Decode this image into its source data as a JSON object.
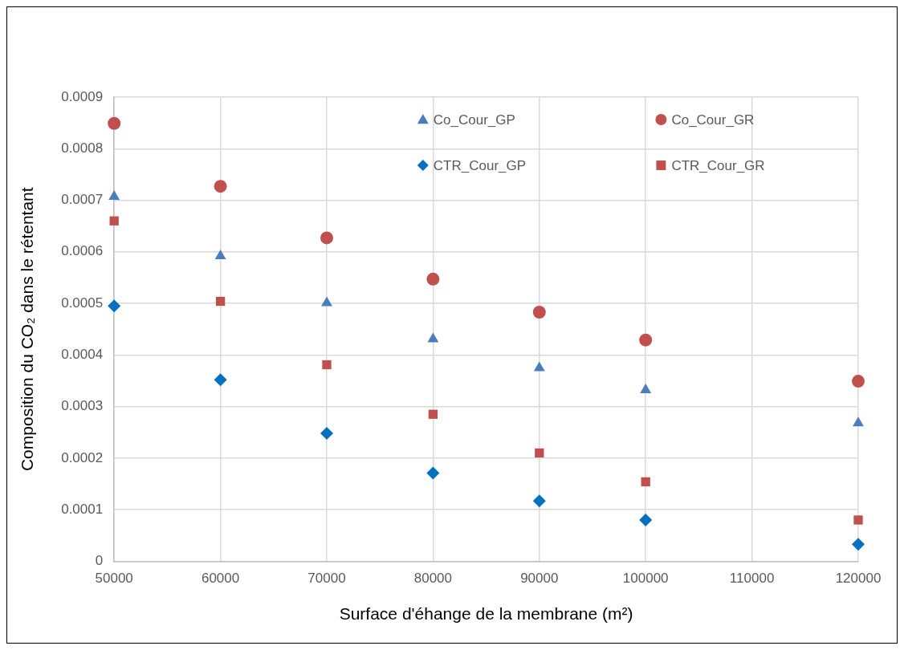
{
  "chart_data": {
    "type": "scatter",
    "xlabel": "Surface d'éhange de la membrane (m²)",
    "ylabel": "Composition du CO₂ dans le rétentant",
    "x": [
      50000,
      60000,
      70000,
      80000,
      90000,
      100000,
      120000
    ],
    "xlim": [
      50000,
      120000
    ],
    "xticks": [
      50000,
      60000,
      70000,
      80000,
      90000,
      100000,
      110000,
      120000
    ],
    "ylim": [
      0,
      0.0009
    ],
    "yticks": [
      0,
      0.0001,
      0.0002,
      0.0003,
      0.0004,
      0.0005,
      0.0006,
      0.0007,
      0.0008,
      0.0009
    ],
    "grid": true,
    "legend": "top right",
    "series": [
      {
        "name": "Co_Cour_GP",
        "color": "#4a7ebb",
        "marker": "triangle",
        "values": [
          0.000707,
          0.000592,
          0.000501,
          0.000431,
          0.000375,
          0.000332,
          0.000268
        ]
      },
      {
        "name": "Co_Cour_GR",
        "color": "#c0504d",
        "marker": "circle",
        "values": [
          0.000849,
          0.000727,
          0.000627,
          0.000547,
          0.000483,
          0.000429,
          0.000349
        ]
      },
      {
        "name": "CTR_Cour_GP",
        "color": "#0070c0",
        "marker": "diamond",
        "values": [
          0.000495,
          0.000352,
          0.000248,
          0.000171,
          0.000117,
          8e-05,
          3.3e-05
        ]
      },
      {
        "name": "CTR_Cour_GR",
        "color": "#c0504d",
        "marker": "square",
        "values": [
          0.00066,
          0.000504,
          0.000381,
          0.000285,
          0.00021,
          0.000154,
          8e-05
        ]
      }
    ]
  }
}
